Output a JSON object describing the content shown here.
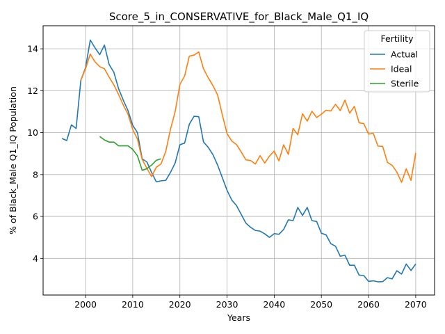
{
  "chart_data": {
    "type": "line",
    "title": "Score_5_in_CONSERVATIVE_for_Black_Male_Q1_IQ",
    "xlabel": "Years",
    "ylabel": "% of Black_Male Q1_IQ Population",
    "xlim": [
      1991,
      2074
    ],
    "ylim": [
      2.25,
      15.1
    ],
    "xticks": [
      2000,
      2010,
      2020,
      2030,
      2040,
      2050,
      2060,
      2070
    ],
    "yticks": [
      4,
      6,
      8,
      10,
      12,
      14
    ],
    "grid": true,
    "legend": {
      "title": "Fertility",
      "position": "top-right"
    },
    "series": [
      {
        "name": "Actual",
        "color": "#1f77b4",
        "x": [
          1995,
          1996,
          1997,
          1998,
          1999,
          2000,
          2001,
          2002,
          2003,
          2004,
          2005,
          2006,
          2007,
          2008,
          2009,
          2010,
          2011,
          2012,
          2013,
          2014,
          2015,
          2016,
          2017,
          2018,
          2019,
          2020,
          2021,
          2022,
          2023,
          2024,
          2025,
          2026,
          2027,
          2028,
          2029,
          2030,
          2031,
          2032,
          2033,
          2034,
          2035,
          2036,
          2037,
          2038,
          2039,
          2040,
          2041,
          2042,
          2043,
          2044,
          2045,
          2046,
          2047,
          2048,
          2049,
          2050,
          2051,
          2052,
          2053,
          2054,
          2055,
          2056,
          2057,
          2058,
          2059,
          2060,
          2061,
          2062,
          2063,
          2064,
          2065,
          2066,
          2067,
          2068,
          2069,
          2070
        ],
        "values": [
          9.72,
          9.62,
          10.37,
          10.2,
          12.5,
          13.1,
          14.42,
          14.05,
          13.72,
          14.18,
          13.25,
          12.88,
          12.1,
          11.55,
          11.05,
          10.35,
          10.0,
          8.75,
          8.6,
          8.1,
          7.65,
          7.7,
          7.72,
          8.1,
          8.55,
          9.42,
          9.5,
          10.4,
          10.78,
          10.76,
          9.56,
          9.3,
          8.95,
          8.45,
          7.85,
          7.25,
          6.78,
          6.52,
          6.1,
          5.68,
          5.48,
          5.33,
          5.3,
          5.17,
          5.0,
          5.18,
          5.15,
          5.38,
          5.84,
          5.8,
          6.43,
          6.05,
          6.43,
          5.8,
          5.76,
          5.2,
          5.12,
          4.7,
          4.58,
          4.1,
          4.15,
          3.67,
          3.67,
          3.2,
          3.18,
          2.9,
          2.93,
          2.88,
          2.89,
          3.08,
          3.02,
          3.41,
          3.25,
          3.73,
          3.42,
          3.73
        ]
      },
      {
        "name": "Ideal",
        "color": "#ff7f0e",
        "x": [
          1999,
          2000,
          2001,
          2002,
          2003,
          2004,
          2005,
          2006,
          2007,
          2008,
          2009,
          2010,
          2011,
          2012,
          2013,
          2014,
          2015,
          2016,
          2017,
          2018,
          2019,
          2020,
          2021,
          2022,
          2023,
          2024,
          2025,
          2026,
          2027,
          2028,
          2029,
          2030,
          2031,
          2032,
          2033,
          2034,
          2035,
          2036,
          2037,
          2038,
          2039,
          2040,
          2041,
          2042,
          2043,
          2044,
          2045,
          2046,
          2047,
          2048,
          2049,
          2050,
          2051,
          2052,
          2053,
          2054,
          2055,
          2056,
          2057,
          2058,
          2059,
          2060,
          2061,
          2062,
          2063,
          2064,
          2065,
          2066,
          2067,
          2068,
          2069,
          2070
        ],
        "values": [
          12.5,
          13.05,
          13.75,
          13.38,
          13.15,
          13.05,
          12.65,
          12.28,
          11.82,
          11.32,
          10.88,
          10.15,
          9.7,
          8.72,
          8.3,
          7.9,
          8.35,
          8.5,
          9.1,
          10.15,
          11.0,
          12.3,
          12.7,
          13.65,
          13.7,
          13.85,
          13.05,
          12.62,
          12.25,
          11.8,
          10.85,
          9.95,
          9.6,
          9.43,
          9.08,
          8.7,
          8.67,
          8.5,
          8.9,
          8.55,
          8.88,
          9.12,
          8.65,
          9.42,
          8.96,
          10.2,
          9.9,
          10.9,
          10.55,
          11.02,
          10.72,
          10.88,
          11.07,
          11.03,
          11.35,
          11.05,
          11.55,
          10.93,
          11.25,
          10.47,
          10.43,
          9.93,
          9.97,
          9.36,
          9.34,
          8.58,
          8.44,
          8.12,
          7.63,
          8.27,
          7.72,
          9.03
        ]
      },
      {
        "name": "Sterile",
        "color": "#2ca02c",
        "x": [
          2003,
          2004,
          2005,
          2006,
          2007,
          2008,
          2009,
          2010,
          2011,
          2012,
          2013,
          2014,
          2015,
          2016
        ],
        "values": [
          9.82,
          9.65,
          9.55,
          9.55,
          9.37,
          9.37,
          9.37,
          9.2,
          8.9,
          8.2,
          8.28,
          8.45,
          8.68,
          8.75
        ]
      }
    ]
  }
}
